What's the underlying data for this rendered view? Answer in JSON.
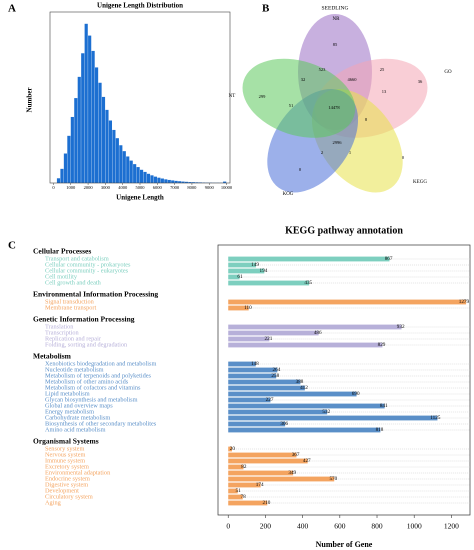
{
  "chart_data": [
    {
      "type": "histogram",
      "label": "A",
      "title": "Unigene Length Distribution",
      "x_label": "Unigene Length",
      "y_label": "Number",
      "bins": [
        200,
        400,
        600,
        800,
        1000,
        1200,
        1400,
        1600,
        1800,
        2000,
        2200,
        2400,
        2600,
        2800,
        3000,
        3200,
        3400,
        3600,
        3800,
        4000,
        4200,
        4400,
        4600,
        4800,
        5000,
        5200,
        5400,
        5600,
        5800,
        6000,
        6200,
        6400,
        6600,
        6800,
        7000,
        7200,
        7400,
        7600,
        7800,
        8000,
        8200,
        8400,
        8600,
        8800,
        9000,
        9200,
        9400,
        9600,
        9800,
        10000
      ],
      "values": [
        40,
        120,
        250,
        400,
        560,
        720,
        900,
        1100,
        1350,
        1250,
        1120,
        980,
        850,
        730,
        620,
        530,
        450,
        380,
        320,
        270,
        225,
        190,
        160,
        135,
        112,
        94,
        78,
        65,
        54,
        45,
        38,
        31,
        26,
        22,
        18,
        15,
        12,
        10,
        8,
        7,
        6,
        5,
        4,
        3,
        3,
        2,
        2,
        2,
        12
      ],
      "color": "#1c6fd1",
      "xlim": [
        -200,
        10200
      ],
      "ylim": [
        0,
        1450
      ],
      "xticks": [
        0,
        1000,
        2000,
        3000,
        4000,
        5000,
        6000,
        7000,
        8000,
        9000,
        10000
      ]
    },
    {
      "type": "venn",
      "label": "B",
      "title": "SEEDLING",
      "sets": [
        {
          "name": "NR",
          "color": "#9a6fc4"
        },
        {
          "name": "GO",
          "color": "#f4a6b4"
        },
        {
          "name": "KEGG",
          "color": "#e8e24a"
        },
        {
          "name": "KOG",
          "color": "#4a6fd8"
        },
        {
          "name": "NT",
          "color": "#5cc95c"
        }
      ],
      "values": [
        85,
        36,
        0,
        0,
        299,
        14478,
        2996,
        4660,
        523,
        25,
        32,
        51,
        8,
        1,
        2,
        13
      ]
    },
    {
      "type": "bar",
      "label": "C",
      "title": "KEGG pathway annotation",
      "x_label": "Number of Gene",
      "xlim": [
        -55,
        1300
      ],
      "xticks": [
        0,
        200,
        400,
        600,
        800,
        1000,
        1200
      ],
      "groups": [
        {
          "name": "Cellular Processes",
          "color": "#7dcfbf",
          "categories": [
            "Transport and catabolism",
            "Cellular community - prokaryotes",
            "Cellular community - eukaryotes",
            "Cell motility",
            "Cell growth and death"
          ],
          "values": [
            867,
            149,
            194,
            61,
            435
          ]
        },
        {
          "name": "Environmental Information Processing",
          "color": "#f4a460",
          "categories": [
            "Signal transduction",
            "Membrane transport"
          ],
          "values": [
            1279,
            110
          ]
        },
        {
          "name": "Genetic Information Processing",
          "color": "#b7b0d9",
          "categories": [
            "Translation",
            "Transcription",
            "Replication and repair",
            "Folding, sorting and degradation"
          ],
          "values": [
            932,
            486,
            221,
            829
          ]
        },
        {
          "name": "Metabolism",
          "color": "#5a8fc8",
          "categories": [
            "Xenobiotics biodegradation and metabolism",
            "Nucleotide metabolism",
            "Metabolism of terpenoids and polyketides",
            "Metabolism of other amino acids",
            "Metabolism of cofactors and vitamins",
            "Lipid metabolism",
            "Glycan biosynthesis and metabolism",
            "Global and overview maps",
            "Energy metabolism",
            "Carbohydrate metabolism",
            "Biosynthesis of other secondary metabolites",
            "Amino acid metabolism"
          ],
          "values": [
            148,
            264,
            258,
            388,
            412,
            690,
            227,
            841,
            532,
            1125,
            306,
            818
          ]
        },
        {
          "name": "Organismal Systems",
          "color": "#f4a460",
          "categories": [
            "Sensory system",
            "Nervous system",
            "Immune system",
            "Excretory system",
            "Environmental adaptation",
            "Endocrine system",
            "Digestive system",
            "Development",
            "Circulatory system",
            "Aging"
          ],
          "values": [
            20,
            367,
            427,
            82,
            349,
            570,
            174,
            51,
            78,
            210
          ]
        }
      ]
    }
  ]
}
